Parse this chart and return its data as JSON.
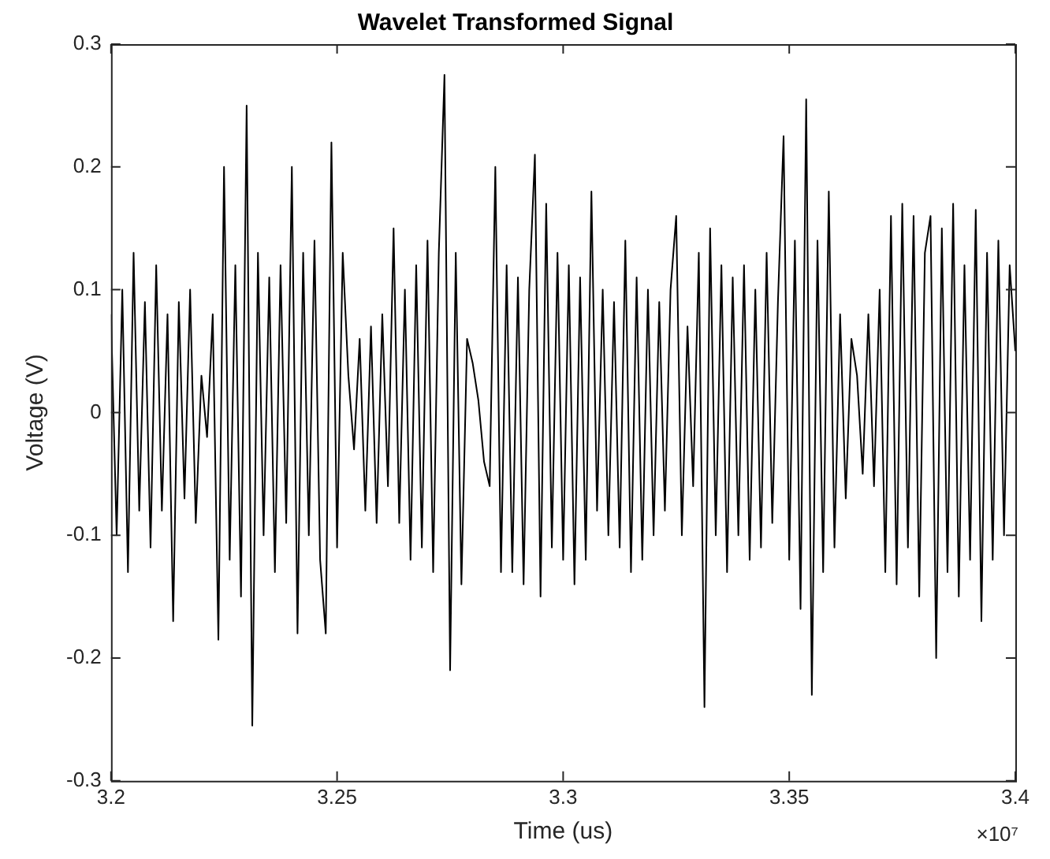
{
  "chart_data": {
    "type": "line",
    "title": "Wavelet Transformed Signal",
    "xlabel": "Time (us)",
    "ylabel": "Voltage (V)",
    "annotations": [
      "×10⁷"
    ],
    "x": [
      3.2,
      3.20125,
      3.2025,
      3.20375,
      3.205,
      3.20625,
      3.2075,
      3.20875,
      3.21,
      3.21125,
      3.2125,
      3.21375,
      3.215,
      3.21625,
      3.2175,
      3.21875,
      3.22,
      3.22125,
      3.2225,
      3.22375,
      3.225,
      3.22625,
      3.2275,
      3.22875,
      3.23,
      3.23125,
      3.2325,
      3.23375,
      3.235,
      3.23625,
      3.2375,
      3.23875,
      3.24,
      3.24125,
      3.2425,
      3.24375,
      3.245,
      3.24625,
      3.2475,
      3.24875,
      3.25,
      3.25125,
      3.2525,
      3.25375,
      3.255,
      3.25625,
      3.2575,
      3.25875,
      3.26,
      3.26125,
      3.2625,
      3.26375,
      3.265,
      3.26625,
      3.2675,
      3.26875,
      3.27,
      3.27125,
      3.2725,
      3.27375,
      3.275,
      3.27625,
      3.2775,
      3.27875,
      3.28,
      3.28125,
      3.2825,
      3.28375,
      3.285,
      3.28625,
      3.2875,
      3.28875,
      3.29,
      3.29125,
      3.2925,
      3.29375,
      3.295,
      3.29625,
      3.2975,
      3.29875,
      3.3,
      3.30125,
      3.3025,
      3.30375,
      3.305,
      3.30625,
      3.3075,
      3.30875,
      3.31,
      3.31125,
      3.3125,
      3.31375,
      3.315,
      3.31625,
      3.3175,
      3.31875,
      3.32,
      3.32125,
      3.3225,
      3.32375,
      3.325,
      3.32625,
      3.3275,
      3.32875,
      3.33,
      3.33125,
      3.3325,
      3.33375,
      3.335,
      3.33625,
      3.3375,
      3.33875,
      3.34,
      3.34125,
      3.3425,
      3.34375,
      3.345,
      3.34625,
      3.3475,
      3.34875,
      3.35,
      3.35125,
      3.3525,
      3.35375,
      3.355,
      3.35625,
      3.3575,
      3.35875,
      3.36,
      3.36125,
      3.3625,
      3.36375,
      3.365,
      3.36625,
      3.3675,
      3.36875,
      3.37,
      3.37125,
      3.3725,
      3.37375,
      3.375,
      3.37625,
      3.3775,
      3.37875,
      3.38,
      3.38125,
      3.3825,
      3.38375,
      3.385,
      3.38625,
      3.3875,
      3.38875,
      3.39,
      3.39125,
      3.3925,
      3.39375,
      3.395,
      3.39625,
      3.3975,
      3.39875,
      3.4
    ],
    "series": [
      {
        "color": "#000000",
        "values": [
          0.08,
          -0.1,
          0.1,
          -0.13,
          0.13,
          -0.08,
          0.09,
          -0.11,
          0.12,
          -0.08,
          0.08,
          -0.17,
          0.09,
          -0.07,
          0.1,
          -0.09,
          0.03,
          -0.02,
          0.08,
          -0.185,
          0.2,
          -0.12,
          0.12,
          -0.15,
          0.25,
          -0.255,
          0.13,
          -0.1,
          0.11,
          -0.13,
          0.12,
          -0.09,
          0.2,
          -0.18,
          0.13,
          -0.1,
          0.14,
          -0.12,
          -0.18,
          0.22,
          -0.11,
          0.13,
          0.03,
          -0.03,
          0.06,
          -0.08,
          0.07,
          -0.09,
          0.08,
          -0.06,
          0.15,
          -0.09,
          0.1,
          -0.12,
          0.12,
          -0.11,
          0.14,
          -0.13,
          0.13,
          0.275,
          -0.21,
          0.13,
          -0.14,
          0.06,
          0.04,
          0.01,
          -0.04,
          -0.06,
          0.2,
          -0.13,
          0.12,
          -0.13,
          0.11,
          -0.14,
          0.1,
          0.21,
          -0.15,
          0.17,
          -0.11,
          0.13,
          -0.12,
          0.12,
          -0.14,
          0.11,
          -0.12,
          0.18,
          -0.08,
          0.1,
          -0.1,
          0.09,
          -0.11,
          0.14,
          -0.13,
          0.11,
          -0.12,
          0.1,
          -0.1,
          0.09,
          -0.08,
          0.1,
          0.16,
          -0.1,
          0.07,
          -0.06,
          0.13,
          -0.24,
          0.15,
          -0.1,
          0.12,
          -0.13,
          0.11,
          -0.1,
          0.12,
          -0.12,
          0.1,
          -0.11,
          0.13,
          -0.09,
          0.09,
          0.225,
          -0.12,
          0.14,
          -0.16,
          0.255,
          -0.23,
          0.14,
          -0.13,
          0.18,
          -0.11,
          0.08,
          -0.07,
          0.06,
          0.03,
          -0.05,
          0.08,
          -0.06,
          0.1,
          -0.13,
          0.16,
          -0.14,
          0.17,
          -0.11,
          0.16,
          -0.15,
          0.13,
          0.16,
          -0.2,
          0.15,
          -0.13,
          0.17,
          -0.15,
          0.12,
          -0.12,
          0.165,
          -0.17,
          0.13,
          -0.12,
          0.14,
          -0.1,
          0.12,
          0.05
        ]
      }
    ],
    "xlim": [
      3.2,
      3.4
    ],
    "ylim": [
      -0.3,
      0.3
    ],
    "xticks": [
      3.2,
      3.25,
      3.3,
      3.35,
      3.4
    ],
    "yticks": [
      -0.3,
      -0.2,
      -0.1,
      0,
      0.1,
      0.2,
      0.3
    ]
  }
}
